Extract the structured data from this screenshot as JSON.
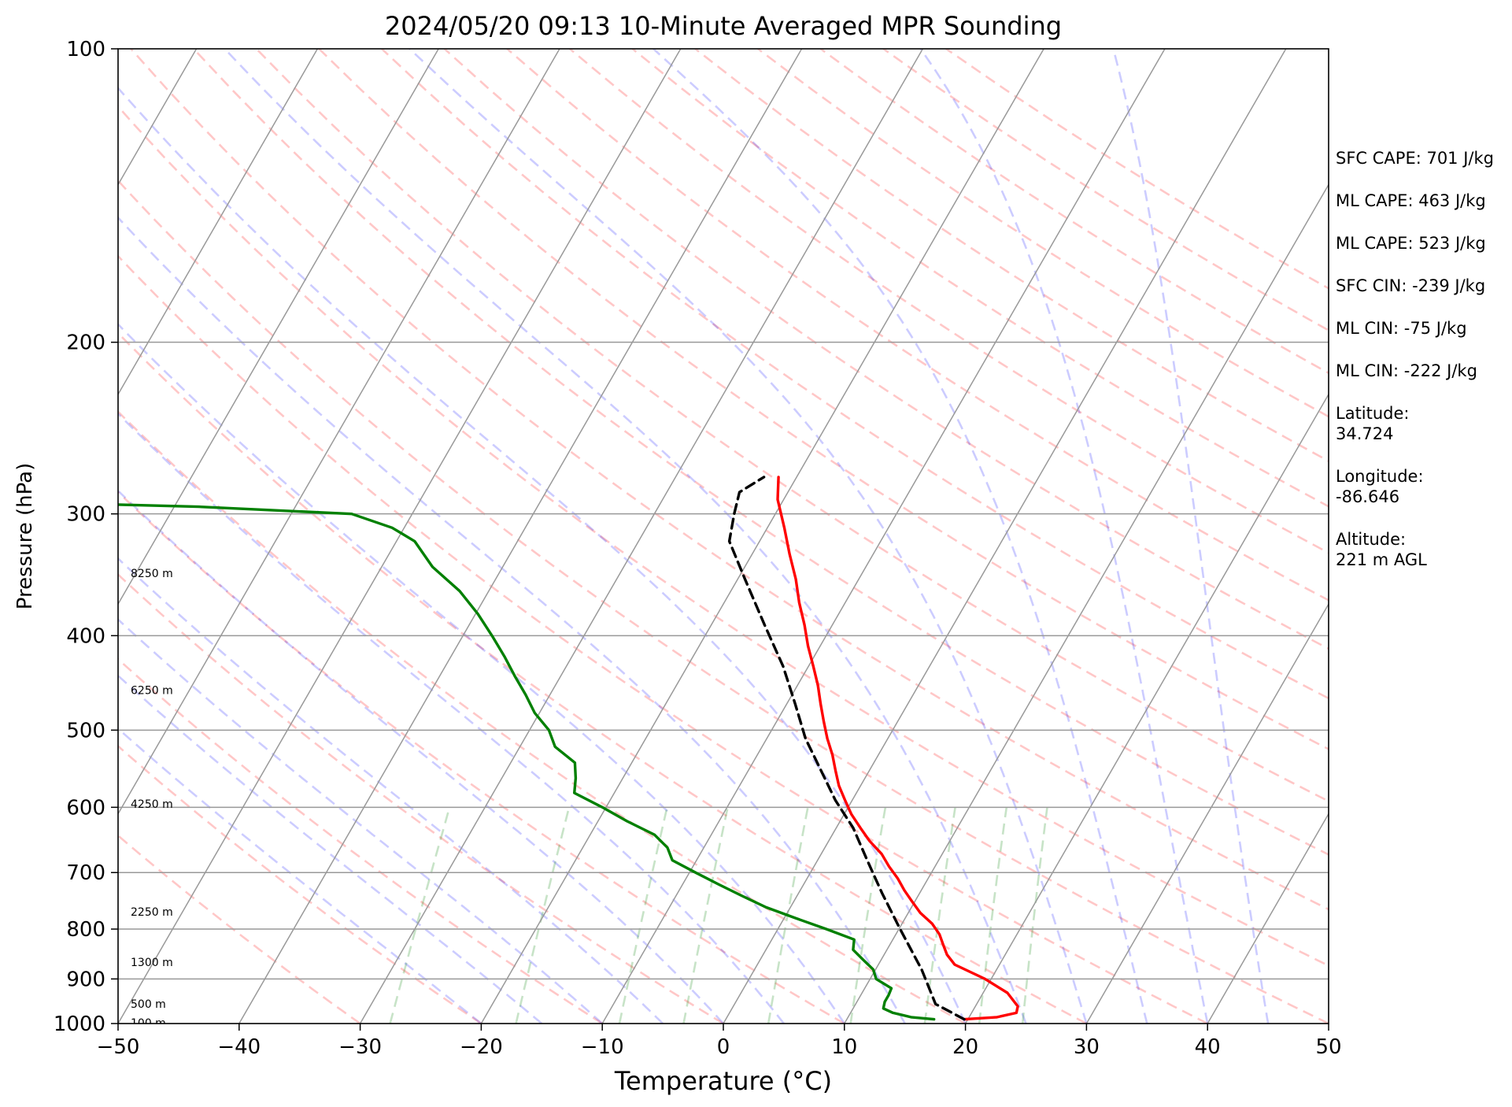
{
  "chart_data": {
    "type": "line",
    "subtype": "skew-t log-p sounding",
    "title": "2024/05/20 09:13 10-Minute Averaged MPR Sounding",
    "xlabel": "Temperature (°C)",
    "ylabel": "Pressure (hPa)",
    "xlim": [
      -50,
      50
    ],
    "ylim": [
      1000,
      100
    ],
    "y_scale": "log",
    "x_ticks": [
      "−50",
      "−40",
      "−30",
      "−20",
      "−10",
      "0",
      "10",
      "20",
      "30",
      "40",
      "50"
    ],
    "y_ticks": [
      "100",
      "200",
      "300",
      "400",
      "500",
      "600",
      "700",
      "800",
      "900",
      "1000"
    ],
    "grid": true,
    "height_labels": [
      {
        "pressure": 345,
        "text": "8250 m"
      },
      {
        "pressure": 455,
        "text": "6250 m"
      },
      {
        "pressure": 595,
        "text": "4250 m"
      },
      {
        "pressure": 768,
        "text": "2250 m"
      },
      {
        "pressure": 865,
        "text": "1300 m"
      },
      {
        "pressure": 955,
        "text": "500 m"
      },
      {
        "pressure": 998,
        "text": "100 m"
      }
    ],
    "series": [
      {
        "role": "temperature",
        "color": "#ff0000",
        "points": [
          [
            19.7,
            990
          ],
          [
            22.3,
            985
          ],
          [
            23.7,
            975
          ],
          [
            23.5,
            960
          ],
          [
            22.0,
            930
          ],
          [
            19.5,
            900
          ],
          [
            16.3,
            870
          ],
          [
            15.2,
            850
          ],
          [
            14.4,
            830
          ],
          [
            13.6,
            810
          ],
          [
            12.5,
            790
          ],
          [
            11.0,
            770
          ],
          [
            9.8,
            750
          ],
          [
            8.6,
            730
          ],
          [
            7.5,
            710
          ],
          [
            6.2,
            690
          ],
          [
            5.0,
            670
          ],
          [
            3.4,
            650
          ],
          [
            2.0,
            630
          ],
          [
            0.6,
            610
          ],
          [
            -0.6,
            590
          ],
          [
            -1.8,
            570
          ],
          [
            -2.8,
            550
          ],
          [
            -3.8,
            530
          ],
          [
            -5.0,
            510
          ],
          [
            -6.1,
            490
          ],
          [
            -7.2,
            470
          ],
          [
            -8.3,
            450
          ],
          [
            -9.6,
            430
          ],
          [
            -11.0,
            410
          ],
          [
            -12.3,
            390
          ],
          [
            -13.8,
            370
          ],
          [
            -15.2,
            350
          ],
          [
            -16.9,
            330
          ],
          [
            -18.6,
            310
          ],
          [
            -20.5,
            290
          ],
          [
            -21.5,
            275
          ]
        ]
      },
      {
        "role": "dewpoint",
        "color": "#008000",
        "points": [
          [
            17.2,
            990
          ],
          [
            15.2,
            985
          ],
          [
            13.5,
            975
          ],
          [
            12.5,
            965
          ],
          [
            12.3,
            950
          ],
          [
            12.3,
            935
          ],
          [
            12.2,
            920
          ],
          [
            10.5,
            900
          ],
          [
            9.8,
            880
          ],
          [
            8.5,
            860
          ],
          [
            7.2,
            840
          ],
          [
            6.8,
            820
          ],
          [
            4.0,
            800
          ],
          [
            1.0,
            780
          ],
          [
            -2.0,
            760
          ],
          [
            -4.5,
            740
          ],
          [
            -7.0,
            720
          ],
          [
            -9.5,
            700
          ],
          [
            -12.0,
            680
          ],
          [
            -13.0,
            660
          ],
          [
            -14.7,
            640
          ],
          [
            -17.6,
            620
          ],
          [
            -20.3,
            600
          ],
          [
            -23.3,
            580
          ],
          [
            -23.9,
            560
          ],
          [
            -24.7,
            540
          ],
          [
            -27.1,
            520
          ],
          [
            -28.4,
            500
          ],
          [
            -30.4,
            480
          ],
          [
            -32.0,
            460
          ],
          [
            -33.8,
            440
          ],
          [
            -35.6,
            420
          ],
          [
            -37.6,
            400
          ],
          [
            -39.8,
            380
          ],
          [
            -42.4,
            360
          ],
          [
            -45.8,
            340
          ],
          [
            -48.5,
            320
          ],
          [
            -51.0,
            310
          ],
          [
            -55.0,
            300
          ],
          [
            -68.0,
            295
          ],
          [
            -82.0,
            292
          ]
        ]
      },
      {
        "role": "parcel",
        "color": "#000000",
        "dashed": true,
        "points": [
          [
            19.7,
            990
          ],
          [
            16.6,
            955
          ],
          [
            13.8,
            880
          ],
          [
            10.1,
            800
          ],
          [
            6.9,
            735
          ],
          [
            4.1,
            680
          ],
          [
            1.4,
            630
          ],
          [
            -1.4,
            590
          ],
          [
            -4.0,
            550
          ],
          [
            -6.8,
            510
          ],
          [
            -9.3,
            470
          ],
          [
            -12.1,
            430
          ],
          [
            -15.6,
            390
          ],
          [
            -19.4,
            350
          ],
          [
            -22.5,
            320
          ],
          [
            -23.4,
            300
          ],
          [
            -24.0,
            285
          ],
          [
            -22.7,
            275
          ]
        ]
      }
    ]
  },
  "stats": {
    "sfc_cape": "SFC CAPE: 701 J/kg",
    "ml_cape_1": "ML CAPE: 463 J/kg",
    "ml_cape_2": "ML CAPE: 523 J/kg",
    "sfc_cin": "SFC CIN: -239 J/kg",
    "ml_cin_1": "ML CIN: -75 J/kg",
    "ml_cin_2": "ML CIN: -222 J/kg",
    "latitude_label": "Latitude:",
    "latitude_value": "34.724",
    "longitude_label": "Longitude:",
    "longitude_value": "-86.646",
    "altitude_label": "Altitude:",
    "altitude_value": "221 m AGL"
  }
}
